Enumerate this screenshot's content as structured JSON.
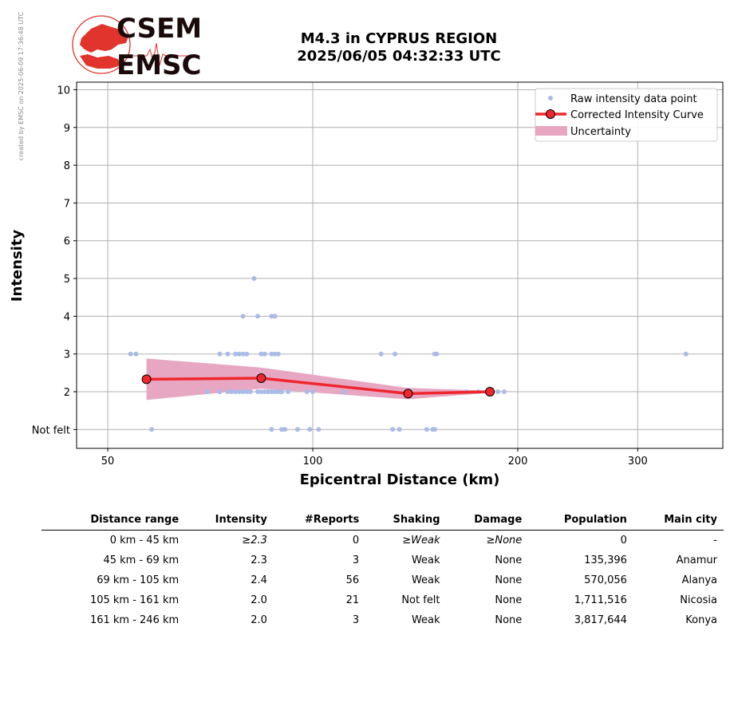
{
  "side_note": "created by EMSC on 2025-06-09 17:36:48 UTC",
  "logo": {
    "top_text": "CSEM",
    "bottom_text": "EMSC"
  },
  "title_line1": "M4.3 in CYPRUS REGION",
  "title_line2": "2025/06/05 04:32:33 UTC",
  "colors": {
    "raw": "#aabbe6",
    "curve": "#f0262e",
    "marker_fill": "#f0262e",
    "uncertainty": "#e7a7c2",
    "grid": "#b0b0b0"
  },
  "chart_data": {
    "type": "scatter",
    "xlabel": "Epicentral Distance (km)",
    "ylabel": "Intensity",
    "x_scale": "log",
    "xlim": [
      45,
      400
    ],
    "ylim": [
      0.5,
      10.2
    ],
    "x_ticks": [
      {
        "value": 50,
        "label": "50"
      },
      {
        "value": 100,
        "label": "100"
      },
      {
        "value": 200,
        "label": "200"
      },
      {
        "value": 300,
        "label": "300"
      }
    ],
    "y_ticks": [
      {
        "value": 1,
        "label": "Not felt"
      },
      {
        "value": 2,
        "label": "2"
      },
      {
        "value": 3,
        "label": "3"
      },
      {
        "value": 4,
        "label": "4"
      },
      {
        "value": 5,
        "label": "5"
      },
      {
        "value": 6,
        "label": "6"
      },
      {
        "value": 7,
        "label": "7"
      },
      {
        "value": 8,
        "label": "8"
      },
      {
        "value": 9,
        "label": "9"
      },
      {
        "value": 10,
        "label": "10"
      }
    ],
    "grid": true,
    "legend_position": "top-right",
    "legend": [
      "Raw intensity data point",
      "Corrected Intensity Curve",
      "Uncertainty"
    ],
    "raw_points": [
      [
        54,
        3
      ],
      [
        55,
        3
      ],
      [
        58,
        1
      ],
      [
        70,
        2
      ],
      [
        73,
        2
      ],
      [
        73,
        3
      ],
      [
        73,
        2
      ],
      [
        75,
        3
      ],
      [
        75,
        2
      ],
      [
        76,
        2
      ],
      [
        77,
        2
      ],
      [
        77,
        3
      ],
      [
        78,
        2
      ],
      [
        78,
        3
      ],
      [
        79,
        2
      ],
      [
        79,
        3
      ],
      [
        79,
        4
      ],
      [
        80,
        2
      ],
      [
        80,
        3
      ],
      [
        81,
        2
      ],
      [
        82,
        5
      ],
      [
        83,
        2
      ],
      [
        83,
        4
      ],
      [
        84,
        2
      ],
      [
        84,
        3
      ],
      [
        85,
        3
      ],
      [
        85,
        2
      ],
      [
        86,
        2
      ],
      [
        86,
        2
      ],
      [
        87,
        2
      ],
      [
        87,
        3
      ],
      [
        87,
        4
      ],
      [
        87,
        1
      ],
      [
        88,
        2
      ],
      [
        88,
        3
      ],
      [
        88,
        4
      ],
      [
        88,
        2
      ],
      [
        89,
        2
      ],
      [
        89,
        3
      ],
      [
        90,
        2
      ],
      [
        90,
        1
      ],
      [
        90,
        2
      ],
      [
        91,
        1
      ],
      [
        92,
        2
      ],
      [
        95,
        1
      ],
      [
        98,
        2
      ],
      [
        99,
        1
      ],
      [
        100,
        2
      ],
      [
        102,
        1
      ],
      [
        111,
        2
      ],
      [
        126,
        3
      ],
      [
        131,
        1
      ],
      [
        132,
        3
      ],
      [
        134,
        1
      ],
      [
        147,
        1
      ],
      [
        150,
        1
      ],
      [
        151,
        1
      ],
      [
        151,
        3
      ],
      [
        152,
        3
      ],
      [
        168,
        2
      ],
      [
        175,
        2
      ],
      [
        180,
        2
      ],
      [
        187,
        2
      ],
      [
        191,
        2
      ],
      [
        353,
        3
      ]
    ],
    "curve": [
      {
        "x": 57,
        "y": 2.33
      },
      {
        "x": 84,
        "y": 2.36
      },
      {
        "x": 138,
        "y": 1.95
      },
      {
        "x": 182,
        "y": 2.0
      }
    ],
    "uncertainty_band": {
      "x": [
        57,
        84,
        138,
        182
      ],
      "lower": [
        1.78,
        2.08,
        1.8,
        1.97
      ],
      "upper": [
        2.88,
        2.64,
        2.1,
        2.03
      ]
    }
  },
  "table": {
    "headers": [
      "Distance range",
      "Intensity",
      "#Reports",
      "Shaking",
      "Damage",
      "Population",
      "Main city"
    ],
    "rows": [
      [
        "0 km -   45 km",
        "≥2.3",
        "0",
        "≥Weak",
        "≥None",
        "0",
        "-"
      ],
      [
        "45 km -   69 km",
        "2.3",
        "3",
        "Weak",
        "None",
        "135,396",
        "Anamur"
      ],
      [
        "69 km -  105 km",
        "2.4",
        "56",
        "Weak",
        "None",
        "570,056",
        "Alanya"
      ],
      [
        "105 km -  161 km",
        "2.0",
        "21",
        "Not felt",
        "None",
        "1,711,516",
        "Nicosia"
      ],
      [
        "161 km -  246 km",
        "2.0",
        "3",
        "Weak",
        "None",
        "3,817,644",
        "Konya"
      ]
    ]
  }
}
